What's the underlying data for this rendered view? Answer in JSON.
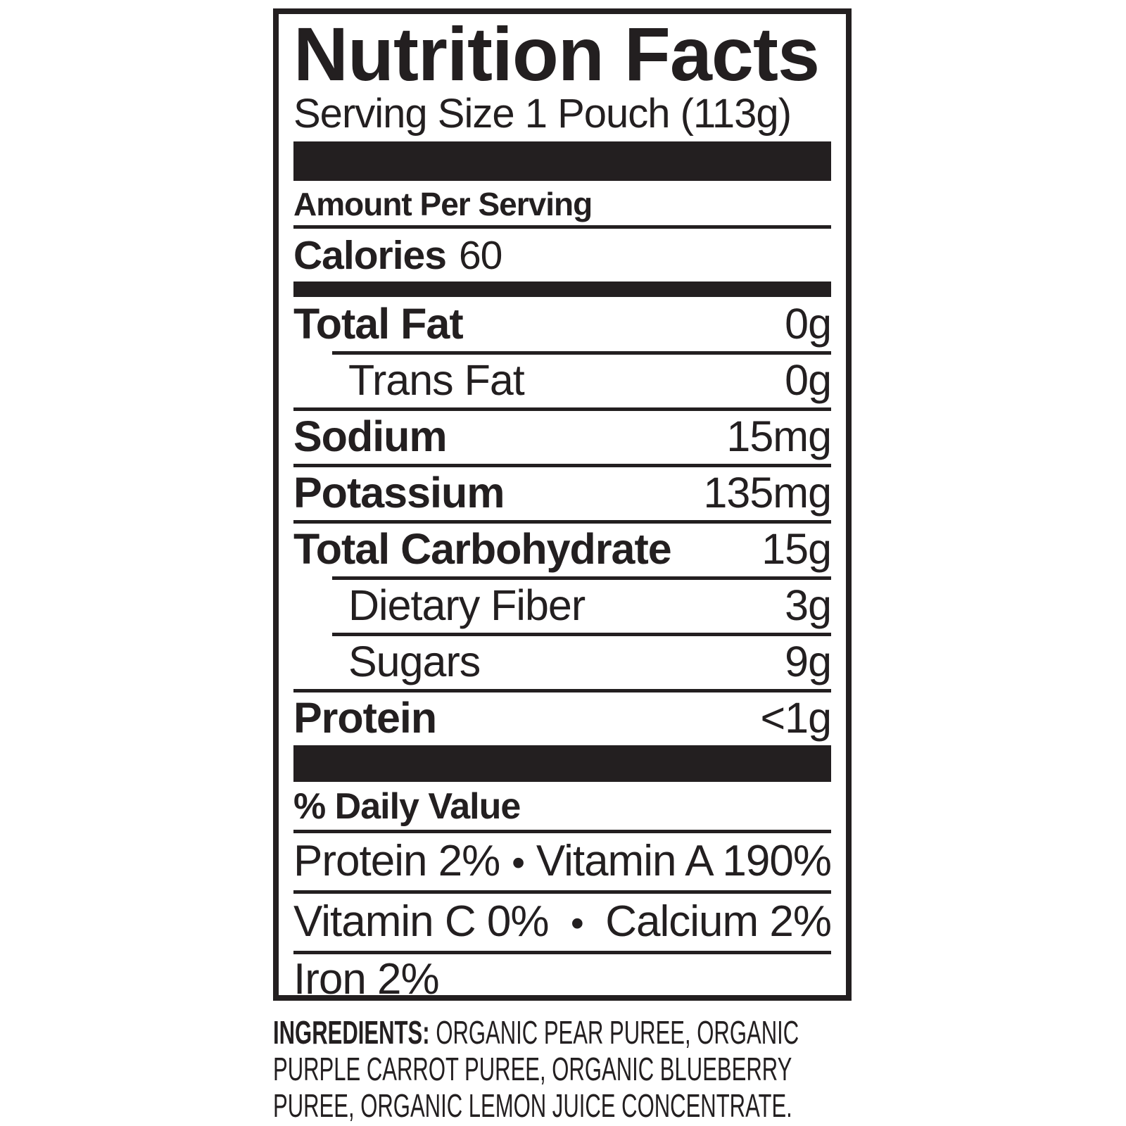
{
  "label": {
    "title": "Nutrition Facts",
    "serving_size": "Serving Size 1 Pouch (113g)",
    "amount_per_serving": "Amount Per Serving",
    "calories": {
      "label": "Calories",
      "value": "60"
    },
    "rows": [
      {
        "label": "Total Fat",
        "value": "0g"
      },
      {
        "label": "Trans Fat",
        "value": "0g"
      },
      {
        "label": "Sodium",
        "value": "15mg"
      },
      {
        "label": "Potassium",
        "value": "135mg"
      },
      {
        "label": "Total Carbohydrate",
        "value": "15g"
      },
      {
        "label": "Dietary Fiber",
        "value": "3g"
      },
      {
        "label": "Sugars",
        "value": "9g"
      },
      {
        "label": "Protein",
        "value": "<1g"
      }
    ],
    "daily_value_header": "% Daily Value",
    "daily_values": [
      {
        "left": "Protein 2%",
        "bullet": "•",
        "right": "Vitamin A 190%"
      },
      {
        "left": "Vitamin C 0%",
        "bullet": "•",
        "right": "Calcium 2%"
      },
      {
        "left": "Iron 2%"
      }
    ]
  },
  "ingredients": {
    "label": "INGREDIENTS:",
    "lines": [
      "ORGANIC PEAR PUREE, ORGANIC",
      "PURPLE CARROT PUREE, ORGANIC BLUEBERRY",
      "PUREE, ORGANIC LEMON JUICE CONCENTRATE."
    ]
  },
  "colors": {
    "ink": "#231f20",
    "background": "#ffffff"
  }
}
